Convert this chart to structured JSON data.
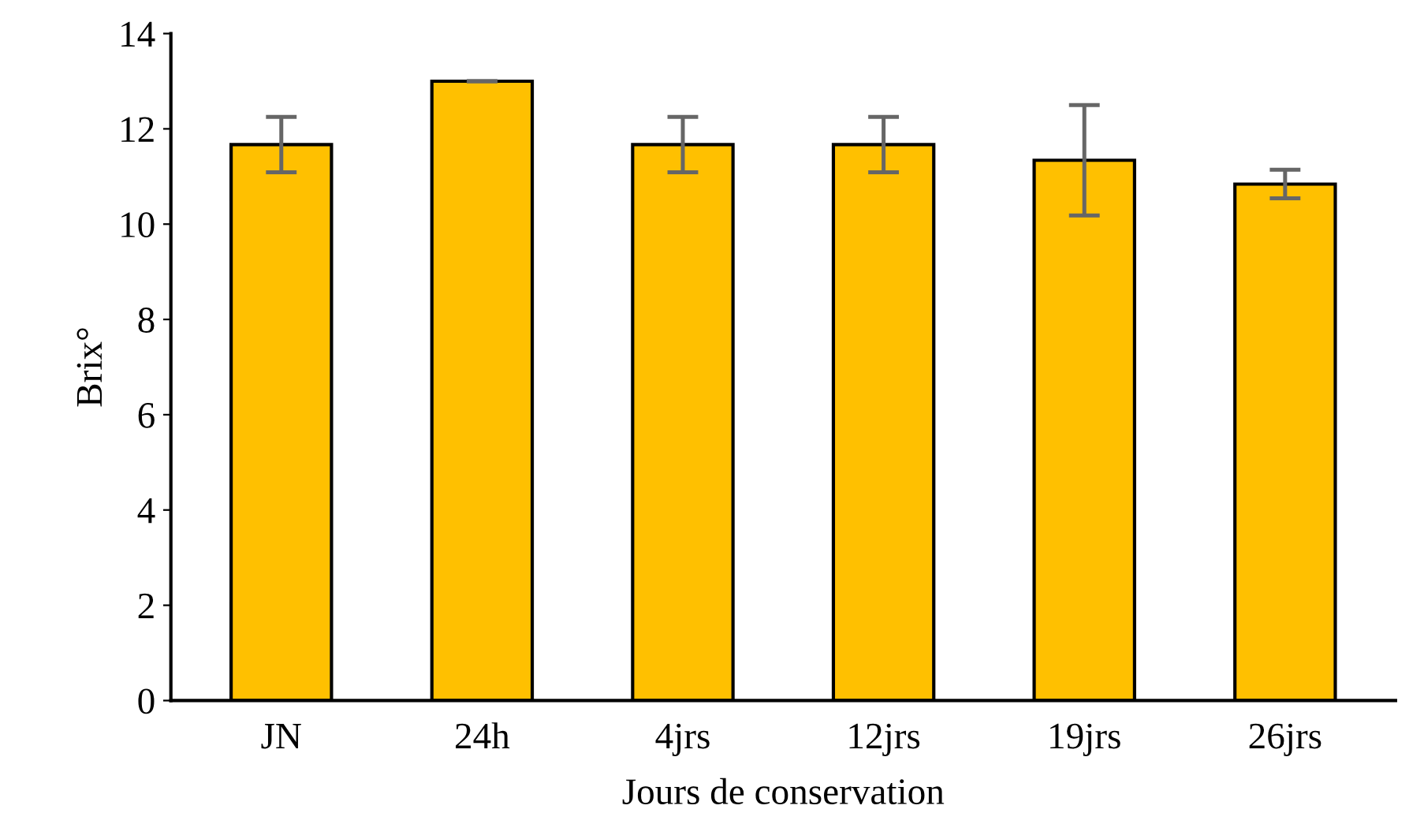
{
  "chart_data": {
    "type": "bar",
    "xlabel": "Jours de conservation",
    "ylabel": "Brix°",
    "categories": [
      "JN",
      "24h",
      "4jrs",
      "12jrs",
      "19jrs",
      "26jrs"
    ],
    "values": [
      11.67,
      13.0,
      11.67,
      11.67,
      11.34,
      10.84
    ],
    "errors": [
      0.58,
      0,
      0.58,
      0.58,
      1.16,
      0.3
    ],
    "color": "#ffc000",
    "ylim": [
      0,
      14
    ],
    "yticks": [
      0,
      2,
      4,
      6,
      8,
      10,
      12,
      14
    ],
    "grid": false
  }
}
